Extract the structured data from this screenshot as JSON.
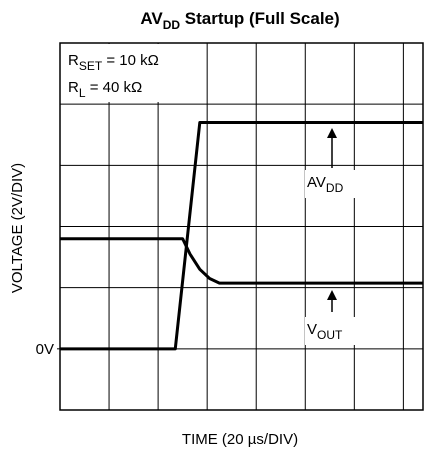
{
  "chart_data": {
    "type": "line",
    "title": [
      "AV",
      "DD",
      " Startup (Full Scale)"
    ],
    "x_label": "TIME (20 µs/DIV)",
    "y_label": "VOLTAGE (2V/DIV)",
    "xlim": [
      0,
      148
    ],
    "ylim": [
      -2,
      10
    ],
    "xgrid": [
      20,
      40,
      60,
      80,
      100,
      120,
      140
    ],
    "ygrid": [
      0,
      2,
      4,
      6,
      8
    ],
    "yticks": [
      {
        "value": 0,
        "label": "0V"
      }
    ],
    "annotations": [
      [
        "R",
        "SET",
        " = 10 kΩ"
      ],
      [
        "R",
        "L",
        " = 40 kΩ"
      ]
    ],
    "series": [
      {
        "name": [
          "AV",
          "DD"
        ],
        "color": "#000000",
        "x": [
          0,
          47,
          57,
          148
        ],
        "values": [
          0,
          0,
          7.4,
          7.4
        ]
      },
      {
        "name": [
          "V",
          "OUT"
        ],
        "color": "#000000",
        "x": [
          0,
          50,
          53,
          57,
          61,
          65,
          148
        ],
        "values": [
          3.6,
          3.6,
          3.1,
          2.6,
          2.3,
          2.15,
          2.15
        ]
      }
    ]
  }
}
